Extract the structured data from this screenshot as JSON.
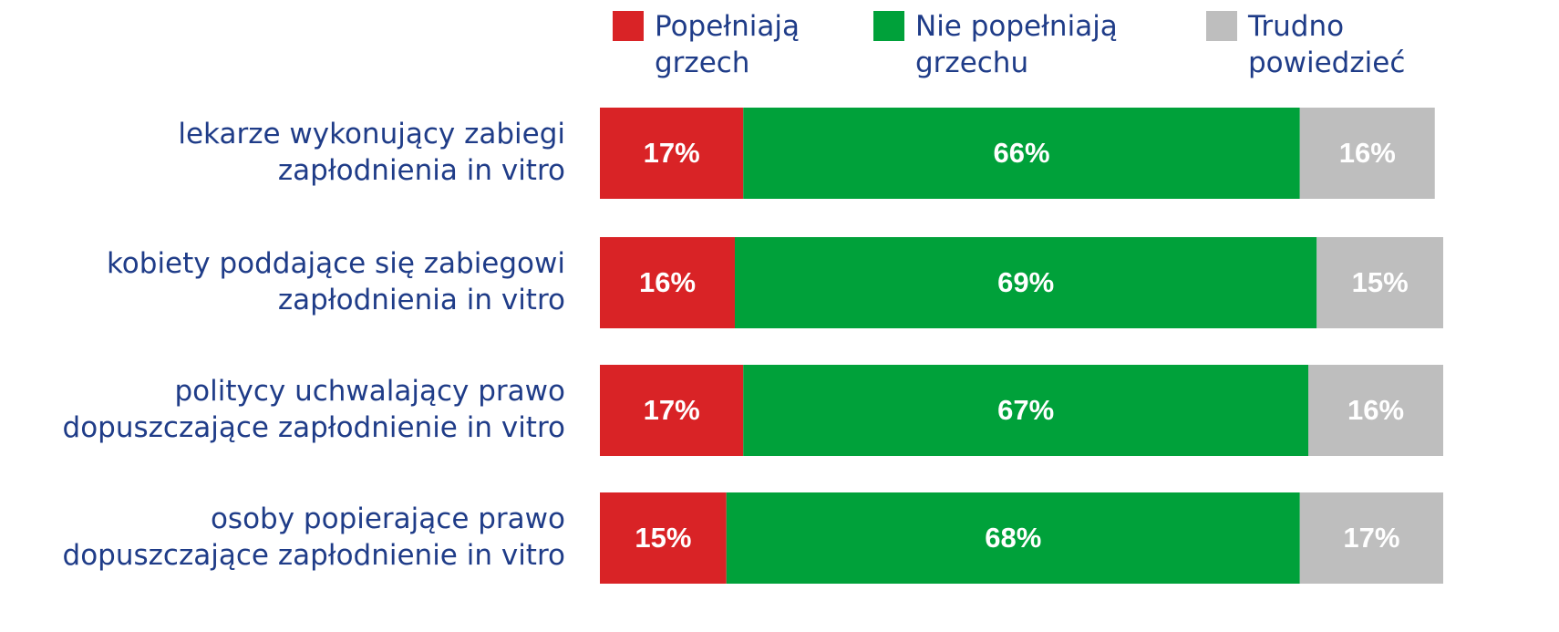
{
  "chart_data": {
    "type": "stacked-bar",
    "orientation": "horizontal",
    "categories": [
      "lekarze wykonujący zabiegi\nzapłodnienia in vitro",
      "kobiety poddające się zabiegowi\nzapłodnienia in vitro",
      "politycy uchwalający prawo\ndopuszczające zapłodnienie in vitro",
      "osoby popierające prawo\ndopuszczające zapłodnienie in vitro"
    ],
    "series": [
      {
        "name": "Popełniają\ngrzech",
        "color": "#d92326",
        "values": [
          17,
          16,
          17,
          15
        ],
        "value_labels": [
          "17%",
          "16%",
          "17%",
          "15%"
        ]
      },
      {
        "name": "Nie popełniają\ngrzechu",
        "color": "#00a13a",
        "values": [
          66,
          69,
          67,
          68
        ],
        "value_labels": [
          "66%",
          "69%",
          "67%",
          "68%"
        ]
      },
      {
        "name": "Trudno\npowiedzieć",
        "color": "#bebebe",
        "values": [
          16,
          15,
          16,
          17
        ],
        "value_labels": [
          "16%",
          "15%",
          "16%",
          "17%"
        ]
      }
    ],
    "xlim": [
      0,
      100
    ]
  }
}
